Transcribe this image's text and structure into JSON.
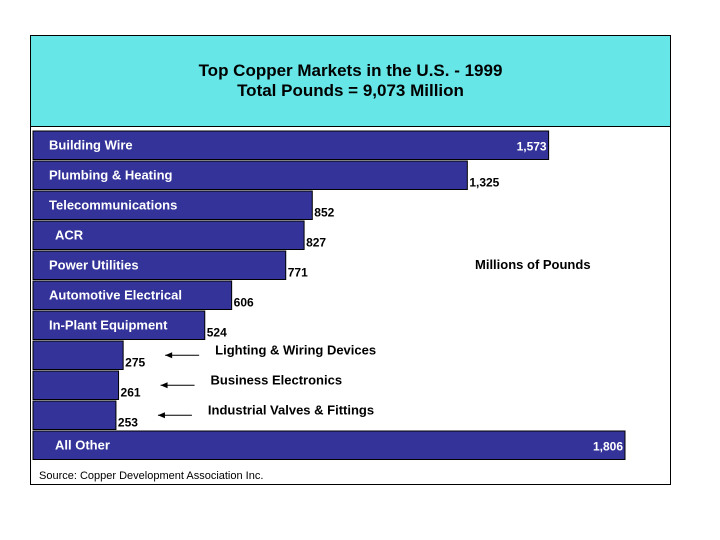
{
  "colors": {
    "title_bg": "#66E6E6",
    "bar": "#333399",
    "bar_label": "#ffffff",
    "text": "#000000"
  },
  "chart_data": {
    "type": "bar",
    "orientation": "horizontal",
    "title": "Top Copper Markets in the U.S. - 1999",
    "subtitle": "Total Pounds = 9,073 Million",
    "unit_note": "Millions of Pounds",
    "source": "Source: Copper Development Association Inc.",
    "categories": [
      "Building Wire",
      "Plumbing & Heating",
      "Telecommunications",
      "ACR",
      "Power Utilities",
      "Automotive Electrical",
      "In-Plant Equipment",
      "Lighting & Wiring Devices",
      "Business Electronics",
      "Industrial Valves & Fittings",
      "All Other"
    ],
    "values": [
      1573,
      1325,
      852,
      827,
      771,
      606,
      524,
      275,
      261,
      253,
      1806
    ],
    "value_labels": [
      "1,573",
      "1,325",
      "852",
      "827",
      "771",
      "606",
      "524",
      "275",
      "261",
      "253",
      "1,806"
    ],
    "label_position": [
      "inside",
      "inside",
      "inside",
      "inside",
      "inside",
      "inside",
      "inside",
      "callout",
      "callout",
      "callout",
      "inside"
    ],
    "value_label_position": [
      "inside-end",
      "outside",
      "outside",
      "outside",
      "outside",
      "outside",
      "outside",
      "outside",
      "outside",
      "outside",
      "inside-end"
    ],
    "xlim": [
      0,
      1806
    ],
    "grid": false
  }
}
